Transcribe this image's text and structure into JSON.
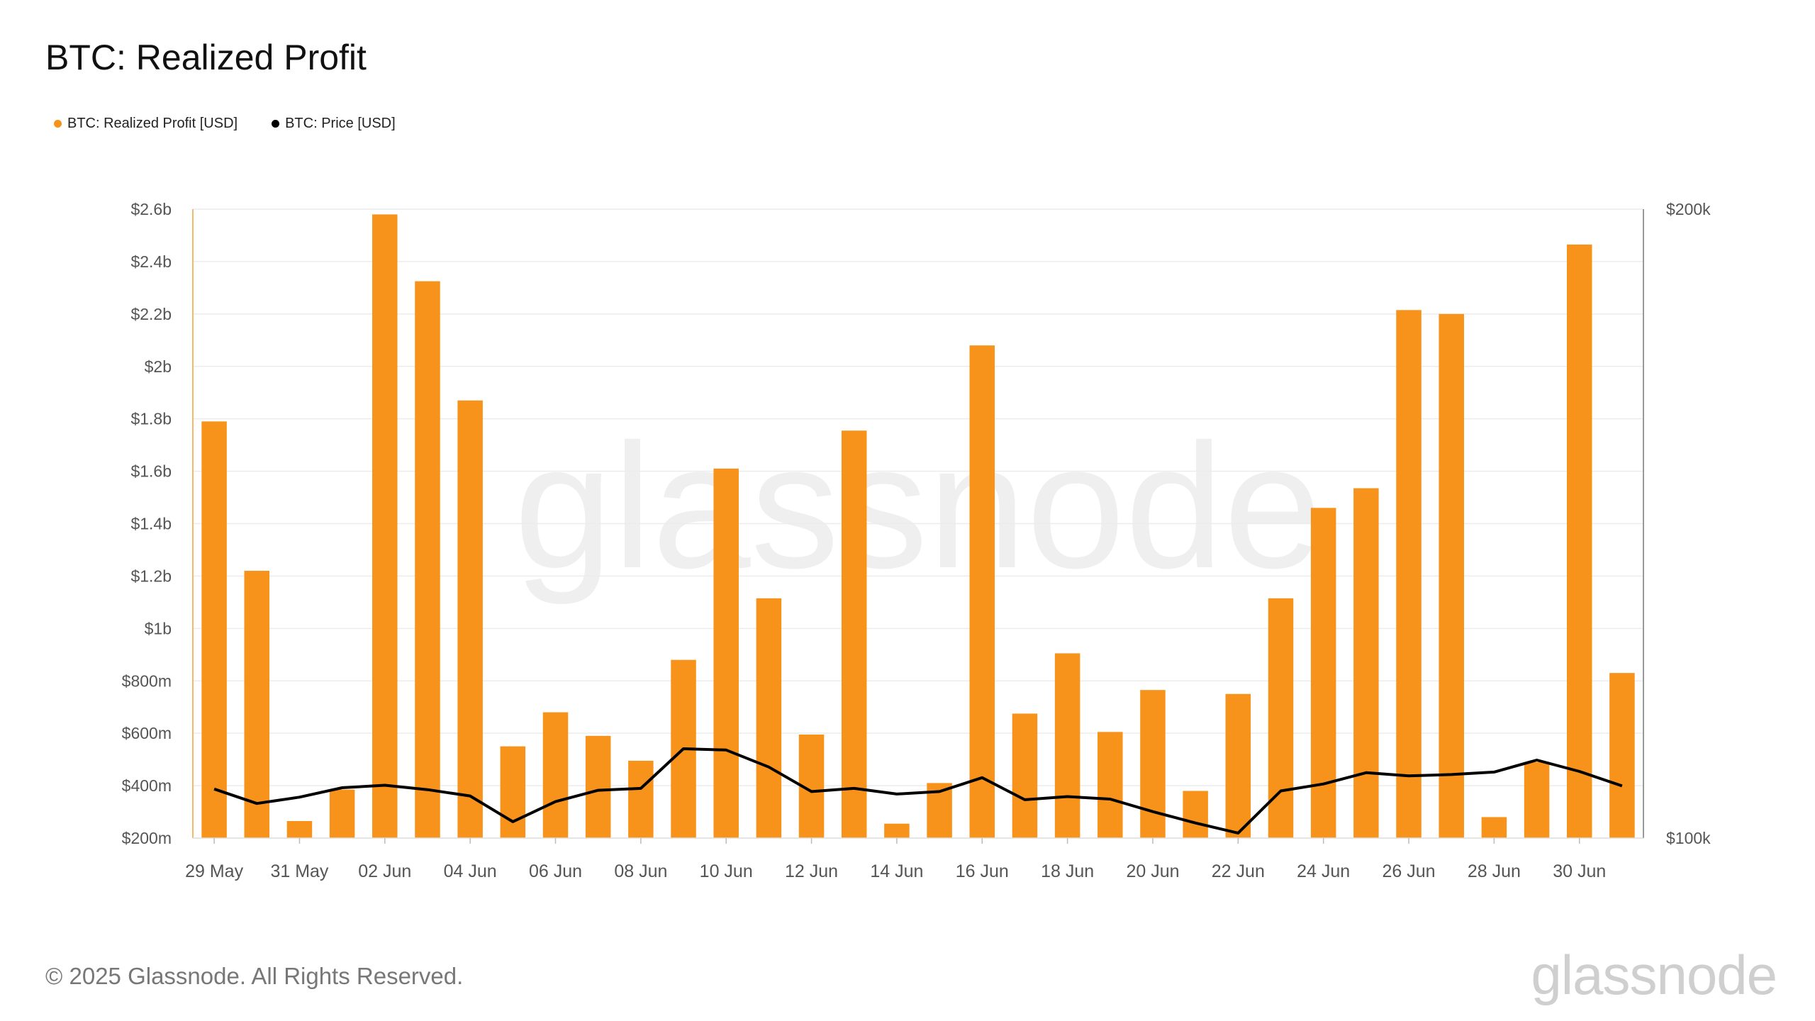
{
  "title": "BTC: Realized Profit",
  "legend": [
    {
      "label": "BTC: Realized Profit [USD]",
      "color": "#f7931a"
    },
    {
      "label": "BTC: Price [USD]",
      "color": "#000000"
    }
  ],
  "footer": "© 2025 Glassnode. All Rights Reserved.",
  "brand": "glassnode",
  "watermark": "glassnode",
  "chart_data": {
    "type": "bar",
    "left_axis": {
      "min": 200,
      "max": 2600,
      "unit": "million USD",
      "ticks": [
        "$200m",
        "$400m",
        "$600m",
        "$800m",
        "$1b",
        "$1.2b",
        "$1.4b",
        "$1.6b",
        "$1.8b",
        "$2b",
        "$2.2b",
        "$2.4b",
        "$2.6b"
      ]
    },
    "right_axis": {
      "min": 100000,
      "max": 200000,
      "ticks": [
        "$100k",
        "$200k"
      ]
    },
    "x_tick_labels": [
      "29 May",
      "31 May",
      "02 Jun",
      "04 Jun",
      "06 Jun",
      "08 Jun",
      "10 Jun",
      "12 Jun",
      "14 Jun",
      "16 Jun",
      "18 Jun",
      "20 Jun",
      "22 Jun",
      "24 Jun",
      "26 Jun",
      "28 Jun",
      "30 Jun"
    ],
    "categories": [
      "29 May",
      "30 May",
      "31 May",
      "01 Jun",
      "02 Jun",
      "03 Jun",
      "04 Jun",
      "05 Jun",
      "06 Jun",
      "07 Jun",
      "08 Jun",
      "09 Jun",
      "10 Jun",
      "11 Jun",
      "12 Jun",
      "13 Jun",
      "14 Jun",
      "15 Jun",
      "16 Jun",
      "17 Jun",
      "18 Jun",
      "19 Jun",
      "20 Jun",
      "21 Jun",
      "22 Jun",
      "23 Jun",
      "24 Jun",
      "25 Jun",
      "26 Jun",
      "27 Jun",
      "28 Jun",
      "29 Jun",
      "30 Jun",
      "01 Jul"
    ],
    "series": [
      {
        "name": "BTC: Realized Profit [USD]",
        "type": "bar",
        "axis": "left",
        "color": "#f7931a",
        "values": [
          1790,
          1220,
          265,
          385,
          2580,
          2325,
          1870,
          550,
          680,
          590,
          495,
          880,
          1610,
          1115,
          595,
          1755,
          255,
          410,
          2080,
          675,
          905,
          605,
          765,
          380,
          750,
          1115,
          1460,
          1535,
          2215,
          2200,
          280,
          490,
          2465,
          830
        ]
      },
      {
        "name": "BTC: Price [USD]",
        "type": "line",
        "axis": "right",
        "color": "#000000",
        "values": [
          107800,
          105500,
          106500,
          108000,
          108400,
          107700,
          106700,
          102600,
          105800,
          107600,
          107900,
          114200,
          114000,
          111300,
          107400,
          107900,
          107000,
          107400,
          109600,
          106100,
          106600,
          106200,
          104200,
          102400,
          100800,
          107500,
          108600,
          110400,
          109900,
          110100,
          110500,
          112400,
          110600,
          108300
        ]
      }
    ],
    "grid": true
  }
}
